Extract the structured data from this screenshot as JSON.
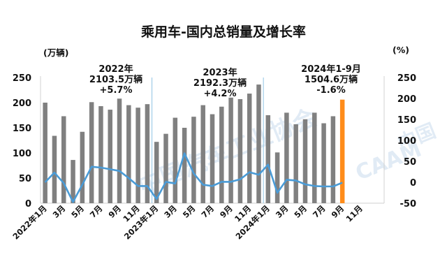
{
  "chart_data": {
    "type": "bar+line",
    "title": "乘用车-国内总销量及增长率",
    "y_left_unit": "(万辆)",
    "y_right_unit": "(%)",
    "y_left_ticks": [
      "250",
      "200",
      "150",
      "100",
      "50",
      "0"
    ],
    "y_right_ticks": [
      "250",
      "200",
      "150",
      "100",
      "50",
      "0",
      "-50"
    ],
    "ylim_left": [
      0,
      250
    ],
    "ylim_right": [
      -50,
      250
    ],
    "x_tick_labels": [
      "2022年1月",
      "3月",
      "5月",
      "7月",
      "9月",
      "11月",
      "2023年1月",
      "3月",
      "5月",
      "7月",
      "9月",
      "11月",
      "2024年1月",
      "3月",
      "5月",
      "7月",
      "9月",
      "11月"
    ],
    "sales_values": [
      200,
      134,
      173,
      86,
      142,
      201,
      193,
      186,
      208,
      195,
      190,
      197,
      122,
      138,
      170,
      150,
      172,
      195,
      177,
      192,
      210,
      207,
      218,
      236,
      175,
      101,
      180,
      157,
      167,
      180,
      159,
      173,
      206
    ],
    "growth_values": [
      0,
      23,
      -2,
      -47,
      -6,
      37,
      35,
      31,
      27,
      10,
      -9,
      -9,
      -40,
      1,
      -3,
      69,
      21,
      -6,
      -9,
      1,
      1,
      7,
      24,
      18,
      42,
      -25,
      6,
      4,
      -5,
      -9,
      -10,
      -10,
      -1
    ],
    "annotations": [
      {
        "lines": [
          "2022年",
          "2103.5万辆",
          "+5.7%"
        ]
      },
      {
        "lines": [
          "2023年",
          "2192.3万辆",
          "+4.2%"
        ]
      },
      {
        "lines": [
          "2024年1-9月",
          "1504.6万辆",
          "-1.6%"
        ]
      }
    ],
    "colors": {
      "bar": "#808080",
      "bar_highlight": "#ff8c1a",
      "line": "#4a9bd6",
      "negative_text": "#e8141a",
      "divider": "#8fc3e3"
    },
    "watermark": "中国汽车工业协会 China Association of Automobile Manufacturers"
  }
}
